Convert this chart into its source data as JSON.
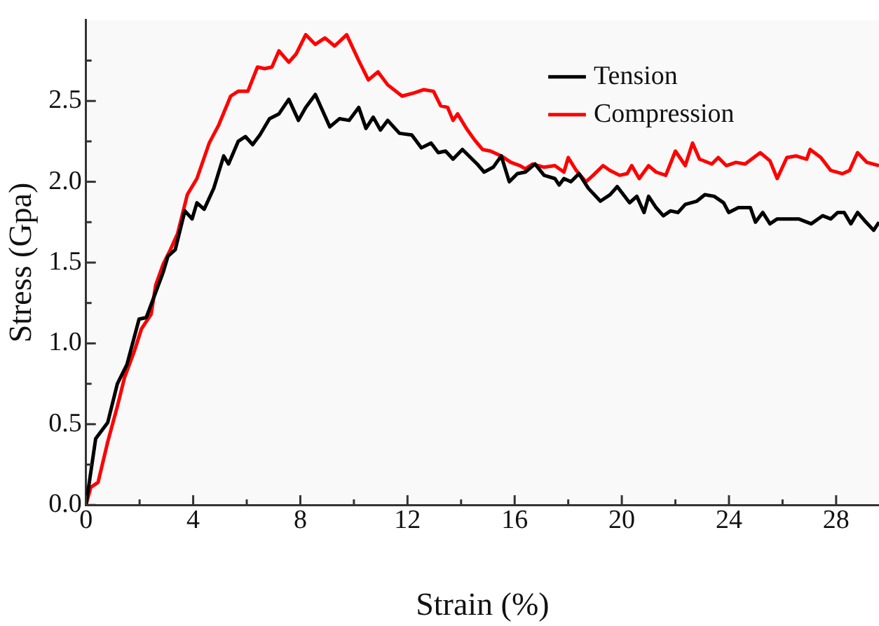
{
  "chart_data": {
    "type": "line",
    "xlabel": "Strain (%)",
    "ylabel": "Stress (Gpa)",
    "xlim": [
      0,
      29.6
    ],
    "ylim": [
      0,
      3.0
    ],
    "xticks": [
      0,
      {
        "value": 2,
        "label": null
      },
      4,
      {
        "value": 6,
        "label": null
      },
      8,
      {
        "value": 10,
        "label": null
      },
      12,
      {
        "value": 14,
        "label": null
      },
      16,
      {
        "value": 18,
        "label": null
      },
      20,
      {
        "value": 22,
        "label": null
      },
      24,
      {
        "value": 26,
        "label": null
      },
      28
    ],
    "yticks": [
      {
        "value": 0,
        "label": "0.0"
      },
      {
        "value": 0.25,
        "label": null
      },
      {
        "value": 0.5,
        "label": "0.5"
      },
      {
        "value": 0.75,
        "label": null
      },
      {
        "value": 1,
        "label": "1.0"
      },
      {
        "value": 1.25,
        "label": null
      },
      {
        "value": 1.5,
        "label": "1.5"
      },
      {
        "value": 1.75,
        "label": null
      },
      {
        "value": 2,
        "label": "2.0"
      },
      {
        "value": 2.25,
        "label": null
      },
      {
        "value": 2.5,
        "label": "2.5"
      },
      {
        "value": 2.75,
        "label": null
      }
    ],
    "grid": false,
    "legend": "top right",
    "marker": "none",
    "line_style": "solid",
    "series": [
      {
        "name": "Tension",
        "color": "#000000",
        "x": [
          0,
          0.36,
          0.81,
          1.17,
          1.53,
          1.98,
          2.25,
          2.7,
          2.88,
          3.06,
          3.33,
          3.69,
          3.96,
          4.14,
          4.41,
          4.77,
          5.14,
          5.32,
          5.68,
          5.95,
          6.22,
          6.49,
          6.85,
          7.2,
          7.57,
          7.93,
          8.2,
          8.56,
          9.1,
          9.46,
          9.82,
          10.18,
          10.45,
          10.72,
          10.99,
          11.26,
          11.7,
          12.16,
          12.52,
          12.88,
          13.15,
          13.42,
          13.7,
          14.05,
          14.6,
          14.86,
          15.2,
          15.5,
          15.8,
          16.1,
          16.4,
          16.76,
          17.1,
          17.5,
          17.66,
          17.84,
          18.1,
          18.4,
          18.75,
          19.2,
          19.56,
          19.83,
          20.29,
          20.56,
          20.83,
          21.0,
          21.28,
          21.55,
          21.82,
          22.1,
          22.37,
          22.8,
          23.1,
          23.45,
          23.8,
          23.99,
          24.35,
          24.8,
          24.99,
          25.26,
          25.53,
          25.8,
          26.16,
          26.6,
          27.07,
          27.5,
          27.8,
          28.06,
          28.3,
          28.55,
          28.8,
          29.06,
          29.4,
          29.6
        ],
        "values": [
          0,
          0.41,
          0.51,
          0.75,
          0.87,
          1.15,
          1.16,
          1.36,
          1.44,
          1.54,
          1.58,
          1.82,
          1.77,
          1.87,
          1.83,
          1.96,
          2.16,
          2.11,
          2.25,
          2.28,
          2.23,
          2.29,
          2.39,
          2.42,
          2.51,
          2.38,
          2.46,
          2.54,
          2.34,
          2.39,
          2.38,
          2.46,
          2.33,
          2.4,
          2.32,
          2.38,
          2.3,
          2.29,
          2.21,
          2.24,
          2.18,
          2.19,
          2.14,
          2.2,
          2.11,
          2.06,
          2.09,
          2.16,
          2.0,
          2.05,
          2.06,
          2.11,
          2.04,
          2.02,
          1.98,
          2.02,
          2.0,
          2.05,
          1.96,
          1.88,
          1.92,
          1.97,
          1.87,
          1.91,
          1.81,
          1.91,
          1.84,
          1.79,
          1.82,
          1.81,
          1.86,
          1.88,
          1.92,
          1.91,
          1.87,
          1.81,
          1.84,
          1.84,
          1.75,
          1.81,
          1.74,
          1.77,
          1.77,
          1.77,
          1.74,
          1.79,
          1.77,
          1.81,
          1.81,
          1.74,
          1.81,
          1.76,
          1.7,
          1.75
        ]
      },
      {
        "name": "Compression",
        "color": "#ff0000",
        "x": [
          0,
          0.18,
          0.45,
          0.81,
          1.17,
          1.44,
          1.8,
          2.07,
          2.43,
          2.6,
          2.88,
          3.15,
          3.42,
          3.78,
          4.14,
          4.6,
          4.95,
          5.4,
          5.68,
          6.04,
          6.4,
          6.67,
          6.94,
          7.2,
          7.57,
          7.84,
          8.2,
          8.56,
          8.92,
          9.28,
          9.73,
          10.18,
          10.54,
          10.9,
          11.26,
          11.8,
          12.25,
          12.6,
          12.97,
          13.24,
          13.5,
          13.7,
          13.87,
          14.2,
          14.5,
          14.8,
          15.1,
          15.5,
          15.86,
          16.2,
          16.4,
          16.67,
          17.1,
          17.5,
          17.84,
          18.0,
          18.3,
          18.66,
          18.93,
          19.3,
          19.56,
          19.92,
          20.2,
          20.37,
          20.65,
          21.0,
          21.28,
          21.64,
          22.0,
          22.37,
          22.64,
          22.9,
          23.36,
          23.6,
          23.9,
          24.26,
          24.6,
          25.17,
          25.53,
          25.8,
          26.16,
          26.5,
          26.9,
          27.03,
          27.43,
          27.8,
          28.24,
          28.5,
          28.8,
          29.15,
          29.6
        ],
        "values": [
          0,
          0.11,
          0.14,
          0.39,
          0.61,
          0.79,
          0.95,
          1.09,
          1.18,
          1.36,
          1.49,
          1.58,
          1.68,
          1.92,
          2.02,
          2.24,
          2.35,
          2.53,
          2.56,
          2.56,
          2.71,
          2.7,
          2.71,
          2.81,
          2.74,
          2.79,
          2.91,
          2.85,
          2.89,
          2.84,
          2.91,
          2.75,
          2.63,
          2.68,
          2.6,
          2.53,
          2.55,
          2.57,
          2.56,
          2.47,
          2.46,
          2.38,
          2.42,
          2.33,
          2.26,
          2.2,
          2.19,
          2.16,
          2.12,
          2.1,
          2.08,
          2.11,
          2.09,
          2.1,
          2.06,
          2.15,
          2.07,
          2.0,
          2.04,
          2.1,
          2.07,
          2.04,
          2.05,
          2.1,
          2.02,
          2.1,
          2.06,
          2.04,
          2.19,
          2.1,
          2.24,
          2.14,
          2.11,
          2.15,
          2.1,
          2.12,
          2.11,
          2.18,
          2.13,
          2.02,
          2.15,
          2.16,
          2.14,
          2.2,
          2.15,
          2.07,
          2.05,
          2.07,
          2.18,
          2.12,
          2.1
        ]
      }
    ]
  }
}
